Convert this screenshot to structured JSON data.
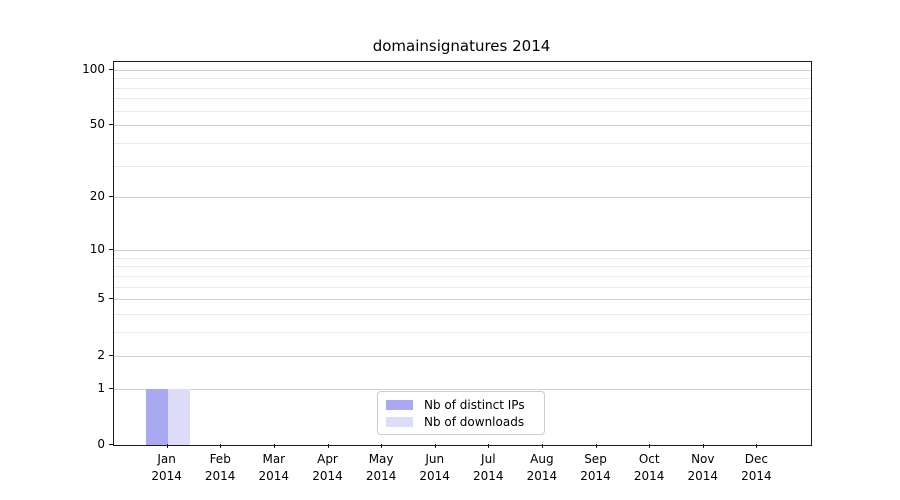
{
  "colors": {
    "distinct_ips": "#a9a9f2",
    "downloads": "#dcdcf8",
    "grid_major": "#cfcfcf",
    "grid_minor": "#e9e9e9",
    "axis": "#1a1a1a",
    "legend_border": "#cccccc",
    "background": "#ffffff"
  },
  "legend": {
    "position": "lower center",
    "items": [
      {
        "label": "Nb of distinct IPs",
        "color": "#a9a9f2"
      },
      {
        "label": "Nb of downloads",
        "color": "#dcdcf8"
      }
    ]
  },
  "chart_data": {
    "type": "bar",
    "title": "domainsignatures 2014",
    "xlabel": "",
    "ylabel": "",
    "y_scale": "log1p",
    "ylim": [
      0,
      110
    ],
    "grid": true,
    "y_major_ticks": [
      0,
      1,
      2,
      5,
      10,
      20,
      50,
      100
    ],
    "y_minor_ticks": [
      3,
      4,
      6,
      7,
      8,
      9,
      30,
      40,
      60,
      70,
      80,
      90
    ],
    "categories": [
      {
        "line1": "Jan",
        "line2": "2014"
      },
      {
        "line1": "Feb",
        "line2": "2014"
      },
      {
        "line1": "Mar",
        "line2": "2014"
      },
      {
        "line1": "Apr",
        "line2": "2014"
      },
      {
        "line1": "May",
        "line2": "2014"
      },
      {
        "line1": "Jun",
        "line2": "2014"
      },
      {
        "line1": "Jul",
        "line2": "2014"
      },
      {
        "line1": "Aug",
        "line2": "2014"
      },
      {
        "line1": "Sep",
        "line2": "2014"
      },
      {
        "line1": "Oct",
        "line2": "2014"
      },
      {
        "line1": "Nov",
        "line2": "2014"
      },
      {
        "line1": "Dec",
        "line2": "2014"
      }
    ],
    "series": [
      {
        "name": "Nb of distinct IPs",
        "color": "#a9a9f2",
        "values": [
          1,
          0,
          0,
          0,
          0,
          0,
          0,
          0,
          0,
          0,
          0,
          0
        ]
      },
      {
        "name": "Nb of downloads",
        "color": "#dcdcf8",
        "values": [
          1,
          0,
          0,
          0,
          0,
          0,
          0,
          0,
          0,
          0,
          0,
          0
        ]
      }
    ]
  }
}
